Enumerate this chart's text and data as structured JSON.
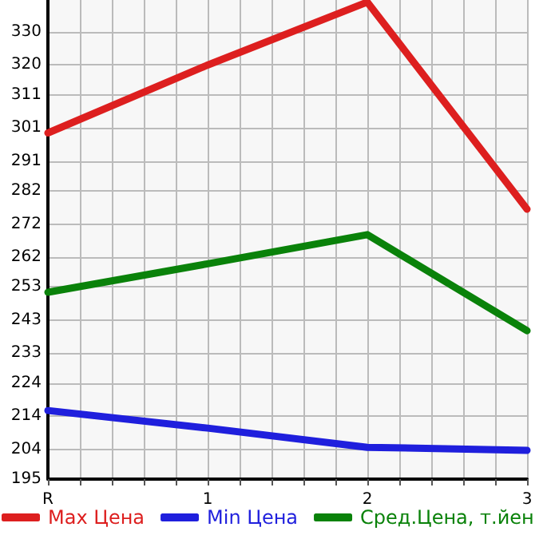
{
  "chart_data": {
    "type": "line",
    "categories": [
      "R",
      "1",
      "2",
      "3"
    ],
    "series": [
      {
        "name": "Max Цена",
        "color": "#dd1f1f",
        "values": [
          299.5,
          320,
          339,
          276.5
        ]
      },
      {
        "name": "Min Цена",
        "color": "#1f1fdd",
        "values": [
          215.7,
          210.4,
          204.6,
          203.7
        ]
      },
      {
        "name": "Сред.Цена, т.йен",
        "color": "#0a820a",
        "values": [
          251.4,
          260,
          268.8,
          239.8
        ]
      }
    ],
    "ylim": [
      195,
      339.64
    ],
    "yticks": [
      195,
      204,
      214,
      224,
      233,
      243,
      253,
      262,
      272,
      282,
      291,
      301,
      311,
      320,
      330
    ],
    "grid": true,
    "legend": "bottom",
    "marker": "none",
    "line_style": "solid"
  }
}
